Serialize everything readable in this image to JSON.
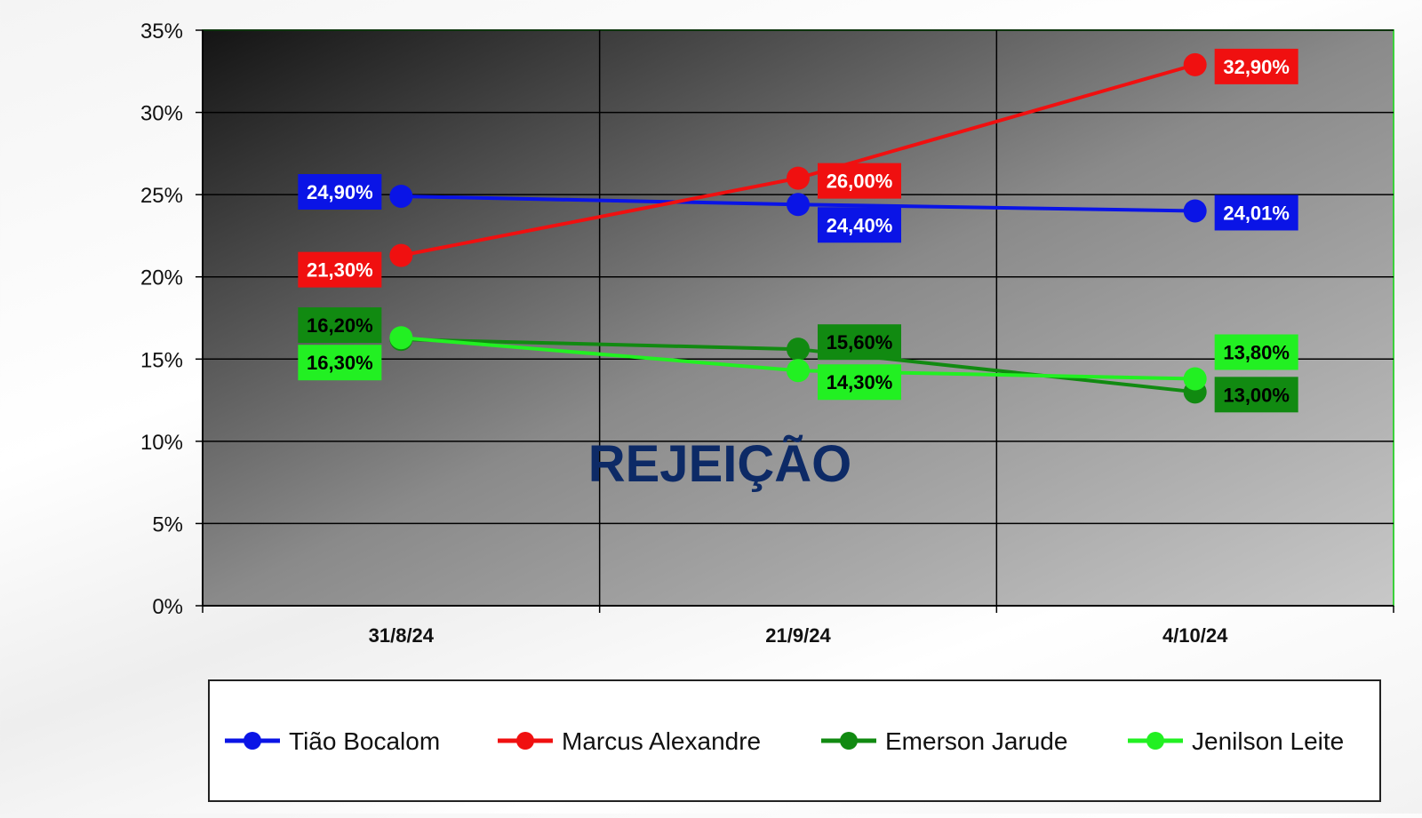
{
  "chart_data": {
    "type": "line",
    "title": "",
    "annotation": "REJEIÇÃO",
    "categories": [
      "31/8/24",
      "21/9/24",
      "4/10/24"
    ],
    "ylim": [
      0,
      35
    ],
    "yticks": [
      0,
      5,
      10,
      15,
      20,
      25,
      30,
      35
    ],
    "ytick_labels": [
      "0%",
      "5%",
      "10%",
      "15%",
      "20%",
      "25%",
      "30%",
      "35%"
    ],
    "grid": true,
    "legend_position": "bottom",
    "series": [
      {
        "name": "Tião Bocalom",
        "color": "#0a14e6",
        "label_fg": "#ffffff",
        "values": [
          24.9,
          24.4,
          24.01
        ],
        "labels": [
          "24,90%",
          "24,40%",
          "24,01%"
        ]
      },
      {
        "name": "Marcus Alexandre",
        "color": "#f01010",
        "label_fg": "#ffffff",
        "values": [
          21.3,
          26.0,
          32.9
        ],
        "labels": [
          "21,30%",
          "26,00%",
          "32,90%"
        ]
      },
      {
        "name": "Emerson Jarude",
        "color": "#118a11",
        "label_fg": "#000000",
        "values": [
          16.2,
          15.6,
          13.0
        ],
        "labels": [
          "16,20%",
          "15,60%",
          "13,00%"
        ]
      },
      {
        "name": "Jenilson Leite",
        "color": "#22f022",
        "label_fg": "#000000",
        "values": [
          16.3,
          14.3,
          13.8
        ],
        "labels": [
          "16,30%",
          "14,30%",
          "13,80%"
        ]
      }
    ]
  }
}
